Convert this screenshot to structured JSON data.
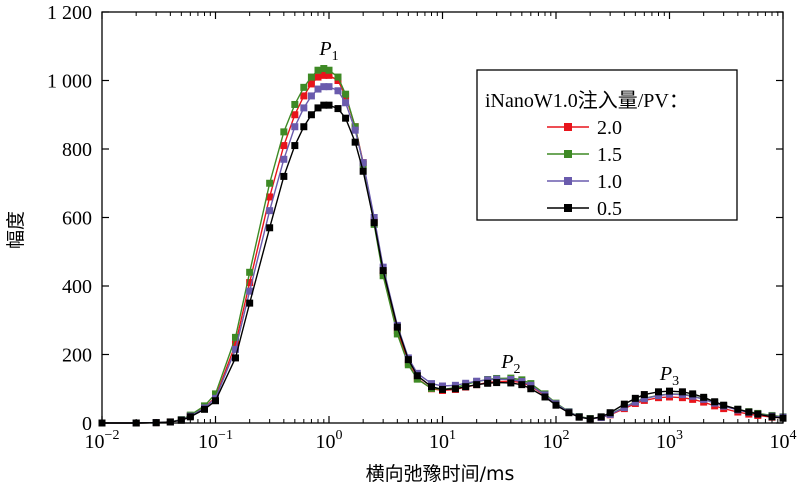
{
  "chart_data": {
    "type": "line",
    "title": "",
    "xlabel": "横向弛豫时间/ms",
    "ylabel": "幅度",
    "x_scale": "log",
    "xlim": [
      0.01,
      10000
    ],
    "ylim": [
      0,
      1200
    ],
    "x_ticks": [
      {
        "value": 0.01,
        "base": "10",
        "exp": "−2"
      },
      {
        "value": 0.1,
        "base": "10",
        "exp": "−1"
      },
      {
        "value": 1,
        "base": "10",
        "exp": "0"
      },
      {
        "value": 10,
        "base": "10",
        "exp": "1"
      },
      {
        "value": 100,
        "base": "10",
        "exp": "2"
      },
      {
        "value": 1000,
        "base": "10",
        "exp": "3"
      },
      {
        "value": 10000,
        "base": "10",
        "exp": "4"
      }
    ],
    "y_ticks": [
      {
        "value": 0,
        "label": "0"
      },
      {
        "value": 200,
        "label": "200"
      },
      {
        "value": 400,
        "label": "400"
      },
      {
        "value": 600,
        "label": "600"
      },
      {
        "value": 800,
        "label": "800"
      },
      {
        "value": 1000,
        "label": "1 000"
      },
      {
        "value": 1200,
        "label": "1 200"
      }
    ],
    "legend": {
      "title": "iNanoW1.0注入量/PV：",
      "position": "top-right"
    },
    "annotations": [
      {
        "label": "P",
        "sub": "1",
        "x": 1.0,
        "y": 1075
      },
      {
        "label": "P",
        "sub": "2",
        "x": 40,
        "y": 160
      },
      {
        "label": "P",
        "sub": "3",
        "x": 1000,
        "y": 125
      }
    ],
    "series": [
      {
        "name": "2.0",
        "color": "#e8141b",
        "x": [
          0.01,
          0.02,
          0.03,
          0.04,
          0.05,
          0.06,
          0.08,
          0.1,
          0.15,
          0.2,
          0.3,
          0.4,
          0.5,
          0.6,
          0.7,
          0.8,
          0.9,
          1.0,
          1.2,
          1.4,
          1.7,
          2,
          2.5,
          3,
          4,
          5,
          6,
          8,
          10,
          13,
          16,
          20,
          25,
          30,
          40,
          50,
          60,
          80,
          100,
          130,
          160,
          200,
          250,
          300,
          400,
          500,
          600,
          800,
          1000,
          1300,
          1600,
          2000,
          2500,
          3000,
          4000,
          5000,
          6000,
          8000,
          10000
        ],
        "values": [
          0,
          0,
          1,
          3,
          9,
          21,
          45,
          75,
          230,
          410,
          660,
          810,
          900,
          955,
          990,
          1010,
          1015,
          1015,
          1000,
          955,
          865,
          760,
          590,
          440,
          270,
          175,
          130,
          100,
          95,
          98,
          105,
          112,
          118,
          121,
          122,
          118,
          108,
          80,
          55,
          32,
          18,
          12,
          16,
          24,
          42,
          57,
          66,
          74,
          76,
          74,
          69,
          61,
          50,
          42,
          32,
          26,
          22,
          17,
          15
        ]
      },
      {
        "name": "1.5",
        "color": "#3e8a25",
        "x": [
          0.01,
          0.02,
          0.03,
          0.04,
          0.05,
          0.06,
          0.08,
          0.1,
          0.15,
          0.2,
          0.3,
          0.4,
          0.5,
          0.6,
          0.7,
          0.8,
          0.9,
          1.0,
          1.2,
          1.4,
          1.7,
          2,
          2.5,
          3,
          4,
          5,
          6,
          8,
          10,
          13,
          16,
          20,
          25,
          30,
          40,
          50,
          60,
          80,
          100,
          130,
          160,
          200,
          250,
          300,
          400,
          500,
          600,
          800,
          1000,
          1300,
          1600,
          2000,
          2500,
          3000,
          4000,
          5000,
          6000,
          8000,
          10000
        ],
        "values": [
          0,
          0,
          1,
          3,
          10,
          23,
          50,
          85,
          250,
          440,
          700,
          850,
          930,
          980,
          1010,
          1030,
          1035,
          1030,
          1010,
          960,
          865,
          755,
          580,
          430,
          260,
          170,
          128,
          101,
          98,
          103,
          112,
          121,
          127,
          130,
          131,
          126,
          115,
          85,
          58,
          33,
          19,
          13,
          17,
          26,
          46,
          62,
          72,
          81,
          85,
          84,
          79,
          70,
          60,
          51,
          40,
          33,
          28,
          22,
          18
        ]
      },
      {
        "name": "1.0",
        "color": "#6a5bad",
        "x": [
          0.01,
          0.02,
          0.03,
          0.04,
          0.05,
          0.06,
          0.08,
          0.1,
          0.15,
          0.2,
          0.3,
          0.4,
          0.5,
          0.6,
          0.7,
          0.8,
          0.9,
          1.0,
          1.2,
          1.4,
          1.7,
          2,
          2.5,
          3,
          4,
          5,
          6,
          8,
          10,
          13,
          16,
          20,
          25,
          30,
          40,
          50,
          60,
          80,
          100,
          130,
          160,
          200,
          250,
          300,
          400,
          500,
          600,
          800,
          1000,
          1300,
          1600,
          2000,
          2500,
          3000,
          4000,
          5000,
          6000,
          8000,
          10000
        ],
        "values": [
          0,
          0,
          1,
          3,
          9,
          20,
          44,
          72,
          215,
          385,
          620,
          770,
          865,
          920,
          955,
          975,
          982,
          982,
          970,
          935,
          855,
          760,
          600,
          455,
          285,
          190,
          145,
          115,
          108,
          110,
          116,
          122,
          126,
          128,
          127,
          121,
          110,
          82,
          56,
          32,
          18,
          12,
          16,
          25,
          45,
          61,
          71,
          80,
          84,
          83,
          78,
          69,
          58,
          49,
          38,
          31,
          26,
          20,
          17
        ]
      },
      {
        "name": "0.5",
        "color": "#000000",
        "x": [
          0.01,
          0.02,
          0.03,
          0.04,
          0.05,
          0.06,
          0.08,
          0.1,
          0.15,
          0.2,
          0.3,
          0.4,
          0.5,
          0.6,
          0.7,
          0.8,
          0.9,
          1.0,
          1.2,
          1.4,
          1.7,
          2,
          2.5,
          3,
          4,
          5,
          6,
          8,
          10,
          13,
          16,
          20,
          25,
          30,
          40,
          50,
          60,
          80,
          100,
          130,
          160,
          200,
          250,
          300,
          400,
          500,
          600,
          800,
          1000,
          1300,
          1600,
          2000,
          2500,
          3000,
          4000,
          5000,
          6000,
          8000,
          10000
        ],
        "values": [
          0,
          0,
          1,
          3,
          8,
          18,
          40,
          65,
          190,
          350,
          570,
          720,
          810,
          865,
          900,
          920,
          928,
          928,
          918,
          890,
          820,
          735,
          585,
          445,
          280,
          185,
          138,
          106,
          98,
          100,
          106,
          112,
          116,
          118,
          117,
          112,
          100,
          76,
          52,
          30,
          17,
          12,
          18,
          30,
          55,
          72,
          83,
          91,
          93,
          91,
          85,
          75,
          62,
          52,
          40,
          32,
          26,
          18,
          14
        ]
      }
    ]
  }
}
